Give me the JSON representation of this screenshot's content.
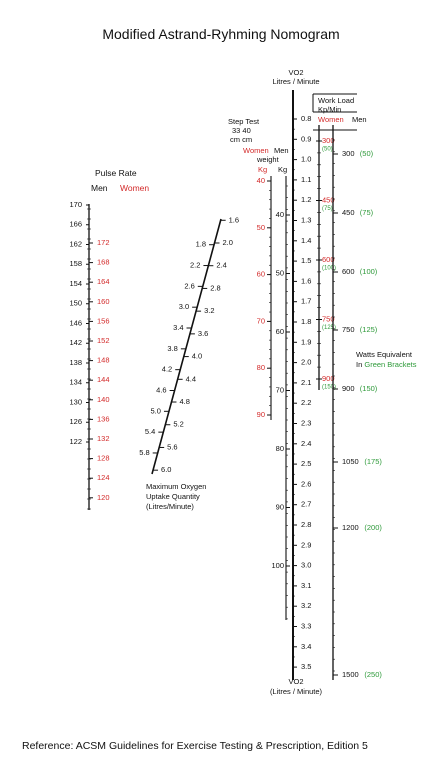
{
  "title": "Modified Astrand-Ryhming Nomogram",
  "reference": "Reference: ACSM Guidelines for Exercise Testing & Prescription, Edition 5",
  "colors": {
    "women": "#d32a2a",
    "watts": "#2e9a3a",
    "ink": "#111111"
  },
  "pulse_rate": {
    "header": "Pulse Rate",
    "men_label": "Men",
    "women_label": "Women",
    "men": [
      "170",
      "166",
      "162",
      "158",
      "154",
      "150",
      "146",
      "142",
      "138",
      "134",
      "130",
      "126",
      "122"
    ],
    "women": [
      "172",
      "168",
      "164",
      "160",
      "156",
      "152",
      "148",
      "144",
      "140",
      "136",
      "132",
      "128",
      "124",
      "120"
    ]
  },
  "max_oxygen": {
    "label_lines": [
      "Maximum Oxygen",
      "Uptake Quantity",
      "(Litres/Minute)"
    ],
    "right": [
      "1.6",
      "2.0",
      "2.4",
      "2.8",
      "3.2",
      "3.6",
      "4.0",
      "4.4",
      "4.8",
      "5.2",
      "5.6",
      "6.0"
    ],
    "left": [
      "1.8",
      "2.2",
      "2.6",
      "3.0",
      "3.4",
      "3.8",
      "4.2",
      "4.6",
      "5.0",
      "5.4",
      "5.8"
    ]
  },
  "step_test": {
    "header_lines": [
      "Step Test",
      "33  40",
      "cm  cm"
    ],
    "weight_label": "weight",
    "women_label": "Women",
    "men_label": "Men",
    "kg_women": "Kg",
    "kg_men": "Kg",
    "women": [
      "40",
      "50",
      "60",
      "70",
      "80",
      "90"
    ],
    "men": [
      "40",
      "50",
      "60",
      "70",
      "80",
      "90",
      "100"
    ]
  },
  "vo2": {
    "top_label_lines": [
      "VO2",
      "Litres / Minute"
    ],
    "bottom_label_lines": [
      "VO2",
      "(Litres / Minute)"
    ],
    "values": [
      "0.8",
      "0.9",
      "1.0",
      "1.1",
      "1.2",
      "1.3",
      "1.4",
      "1.5",
      "1.6",
      "1.7",
      "1.8",
      "1.9",
      "2.0",
      "2.1",
      "2.2",
      "2.3",
      "2.4",
      "2.5",
      "2.6",
      "2.7",
      "2.8",
      "2.9",
      "3.0",
      "3.1",
      "3.2",
      "3.3",
      "3.4",
      "3.5"
    ]
  },
  "workload": {
    "header_lines": [
      "Work Load",
      "Kp/Min"
    ],
    "women_label": "Women",
    "men_label": "Men",
    "women": [
      {
        "value": "300",
        "watts": "(50)"
      },
      {
        "value": "450",
        "watts": "(75)"
      },
      {
        "value": "600",
        "watts": "(100)"
      },
      {
        "value": "750",
        "watts": "(125)"
      },
      {
        "value": "900",
        "watts": "(150)"
      }
    ],
    "men": [
      {
        "value": "300",
        "watts": "(50)"
      },
      {
        "value": "450",
        "watts": "(75)"
      },
      {
        "value": "600",
        "watts": "(100)"
      },
      {
        "value": "750",
        "watts": "(125)"
      },
      {
        "value": "900",
        "watts": "(150)"
      },
      {
        "value": "1050",
        "watts": "(175)"
      },
      {
        "value": "1200",
        "watts": "(200)"
      },
      {
        "value": "1500",
        "watts": "(250)"
      }
    ],
    "watts_label": "Watts Equivalent",
    "watts_label_prefix": "In",
    "watts_label_brackets": "Green Brackets"
  }
}
